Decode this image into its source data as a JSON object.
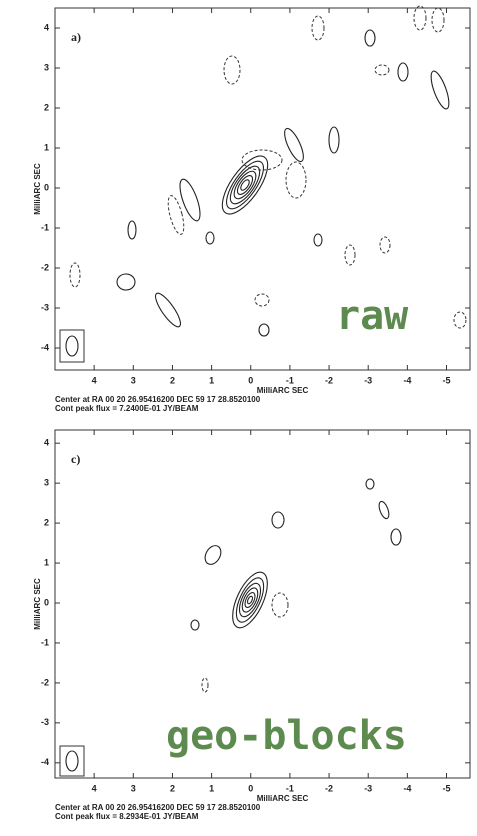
{
  "chart_data": [
    {
      "type": "contour",
      "panel_label": "a)",
      "xlabel": "MilliARC SEC",
      "ylabel": "MilliARC SEC",
      "xlim": [
        5,
        -5.6
      ],
      "ylim": [
        -4.55,
        4.5
      ],
      "xticks": [
        4,
        3,
        2,
        1,
        0,
        -1,
        -2,
        -3,
        -4,
        -5
      ],
      "yticks": [
        4,
        3,
        2,
        1,
        0,
        -1,
        -2,
        -3,
        -4
      ],
      "caption": [
        "Center at RA 00 20 26.95416200  DEC 59 17 28.8520100",
        "Cont peak flux =  7.2400E-01 JY/BEAM"
      ],
      "annotation": "raw"
    },
    {
      "type": "contour",
      "panel_label": "c)",
      "xlabel": "MilliARC SEC",
      "ylabel": "MilliARC SEC",
      "xlim": [
        5,
        -5.6
      ],
      "ylim": [
        -4.38,
        4.33
      ],
      "xticks": [
        4,
        3,
        2,
        1,
        0,
        -1,
        -2,
        -3,
        -4,
        -5
      ],
      "yticks": [
        4,
        3,
        2,
        1,
        0,
        -1,
        -2,
        -3,
        -4
      ],
      "caption": [
        "Center at RA 00 20 26.95416200  DEC 59 17 28.8520100",
        "Cont peak flux =  8.2934E-01 JY/BEAM"
      ],
      "annotation": "geo-blocks"
    }
  ]
}
